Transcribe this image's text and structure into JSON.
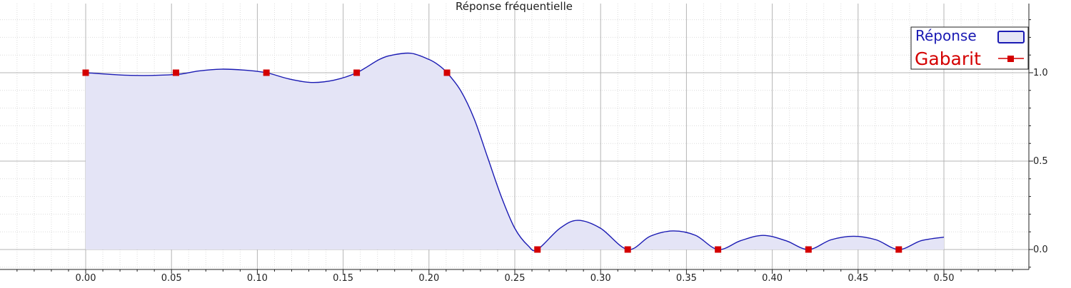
{
  "chart_data": {
    "type": "area",
    "title": "Réponse fréquentielle",
    "xlabel": "",
    "ylabel": "",
    "xlim": [
      -0.05,
      0.55
    ],
    "ylim": [
      -0.11,
      1.38
    ],
    "x_ticks": [
      0.0,
      0.05,
      0.1,
      0.15,
      0.2,
      0.25,
      0.3,
      0.35,
      0.4,
      0.45,
      0.5
    ],
    "x_tick_labels": [
      "0.00",
      "0.05",
      "0.10",
      "0.15",
      "0.20",
      "0.25",
      "0.30",
      "0.35",
      "0.40",
      "0.45",
      "0.50"
    ],
    "y_ticks": [
      0.0,
      0.5,
      1.0
    ],
    "y_tick_labels": [
      "0.0",
      "0.5",
      "1.0"
    ],
    "y_axis_side": "right",
    "grid": true,
    "minor_grid": true,
    "legend_placement": "top-right",
    "series": [
      {
        "name": "Réponse",
        "kind": "filled-line",
        "color": "#1a1ab3",
        "fill": "#e4e4f6",
        "x": [
          0.0,
          0.0263,
          0.0526,
          0.0658,
          0.0789,
          0.0921,
          0.1053,
          0.1184,
          0.1316,
          0.1447,
          0.1579,
          0.1711,
          0.1789,
          0.1895,
          0.2,
          0.2053,
          0.2105,
          0.2184,
          0.2263,
          0.2342,
          0.2421,
          0.25,
          0.2579,
          0.2632,
          0.2763,
          0.2868,
          0.3,
          0.3158,
          0.3289,
          0.3421,
          0.3553,
          0.3684,
          0.3816,
          0.3947,
          0.4079,
          0.4211,
          0.4342,
          0.4474,
          0.4605,
          0.4737,
          0.4868,
          0.5
        ],
        "y": [
          1.0,
          0.985,
          0.99,
          1.01,
          1.02,
          1.015,
          1.0,
          0.965,
          0.945,
          0.958,
          1.0,
          1.075,
          1.1,
          1.11,
          1.075,
          1.045,
          1.0,
          0.9,
          0.74,
          0.52,
          0.3,
          0.12,
          0.02,
          0.0,
          0.12,
          0.165,
          0.12,
          0.0,
          0.075,
          0.105,
          0.08,
          0.0,
          0.05,
          0.08,
          0.05,
          0.0,
          0.055,
          0.075,
          0.055,
          0.0,
          0.05,
          0.07
        ]
      },
      {
        "name": "Gabarit",
        "kind": "markers",
        "color": "#d40000",
        "x": [
          0.0,
          0.0526,
          0.1053,
          0.1579,
          0.2105,
          0.2632,
          0.3158,
          0.3684,
          0.4211,
          0.4737
        ],
        "y": [
          1.0,
          1.0,
          1.0,
          1.0,
          1.0,
          0.0,
          0.0,
          0.0,
          0.0,
          0.0
        ]
      }
    ],
    "colors": {
      "major_grid": "#b4b4b4",
      "minor_grid": "#dcdcdc",
      "axis": "#222222"
    }
  }
}
